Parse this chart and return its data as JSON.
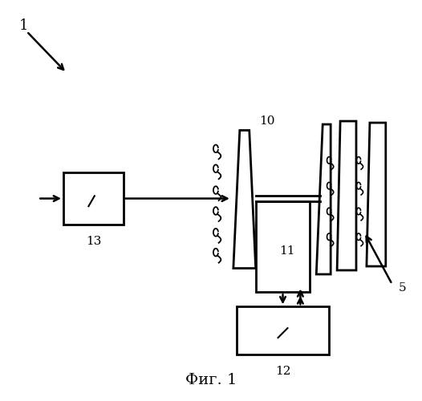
{
  "bg_color": "#ffffff",
  "text_color": "#000000",
  "line_color": "#000000",
  "title": "Фиг. 1",
  "label_1": "1",
  "label_5": "5",
  "label_10": "10",
  "label_11": "11",
  "label_12": "12",
  "label_13": "13",
  "figsize": [
    5.26,
    5.0
  ],
  "dpi": 100
}
